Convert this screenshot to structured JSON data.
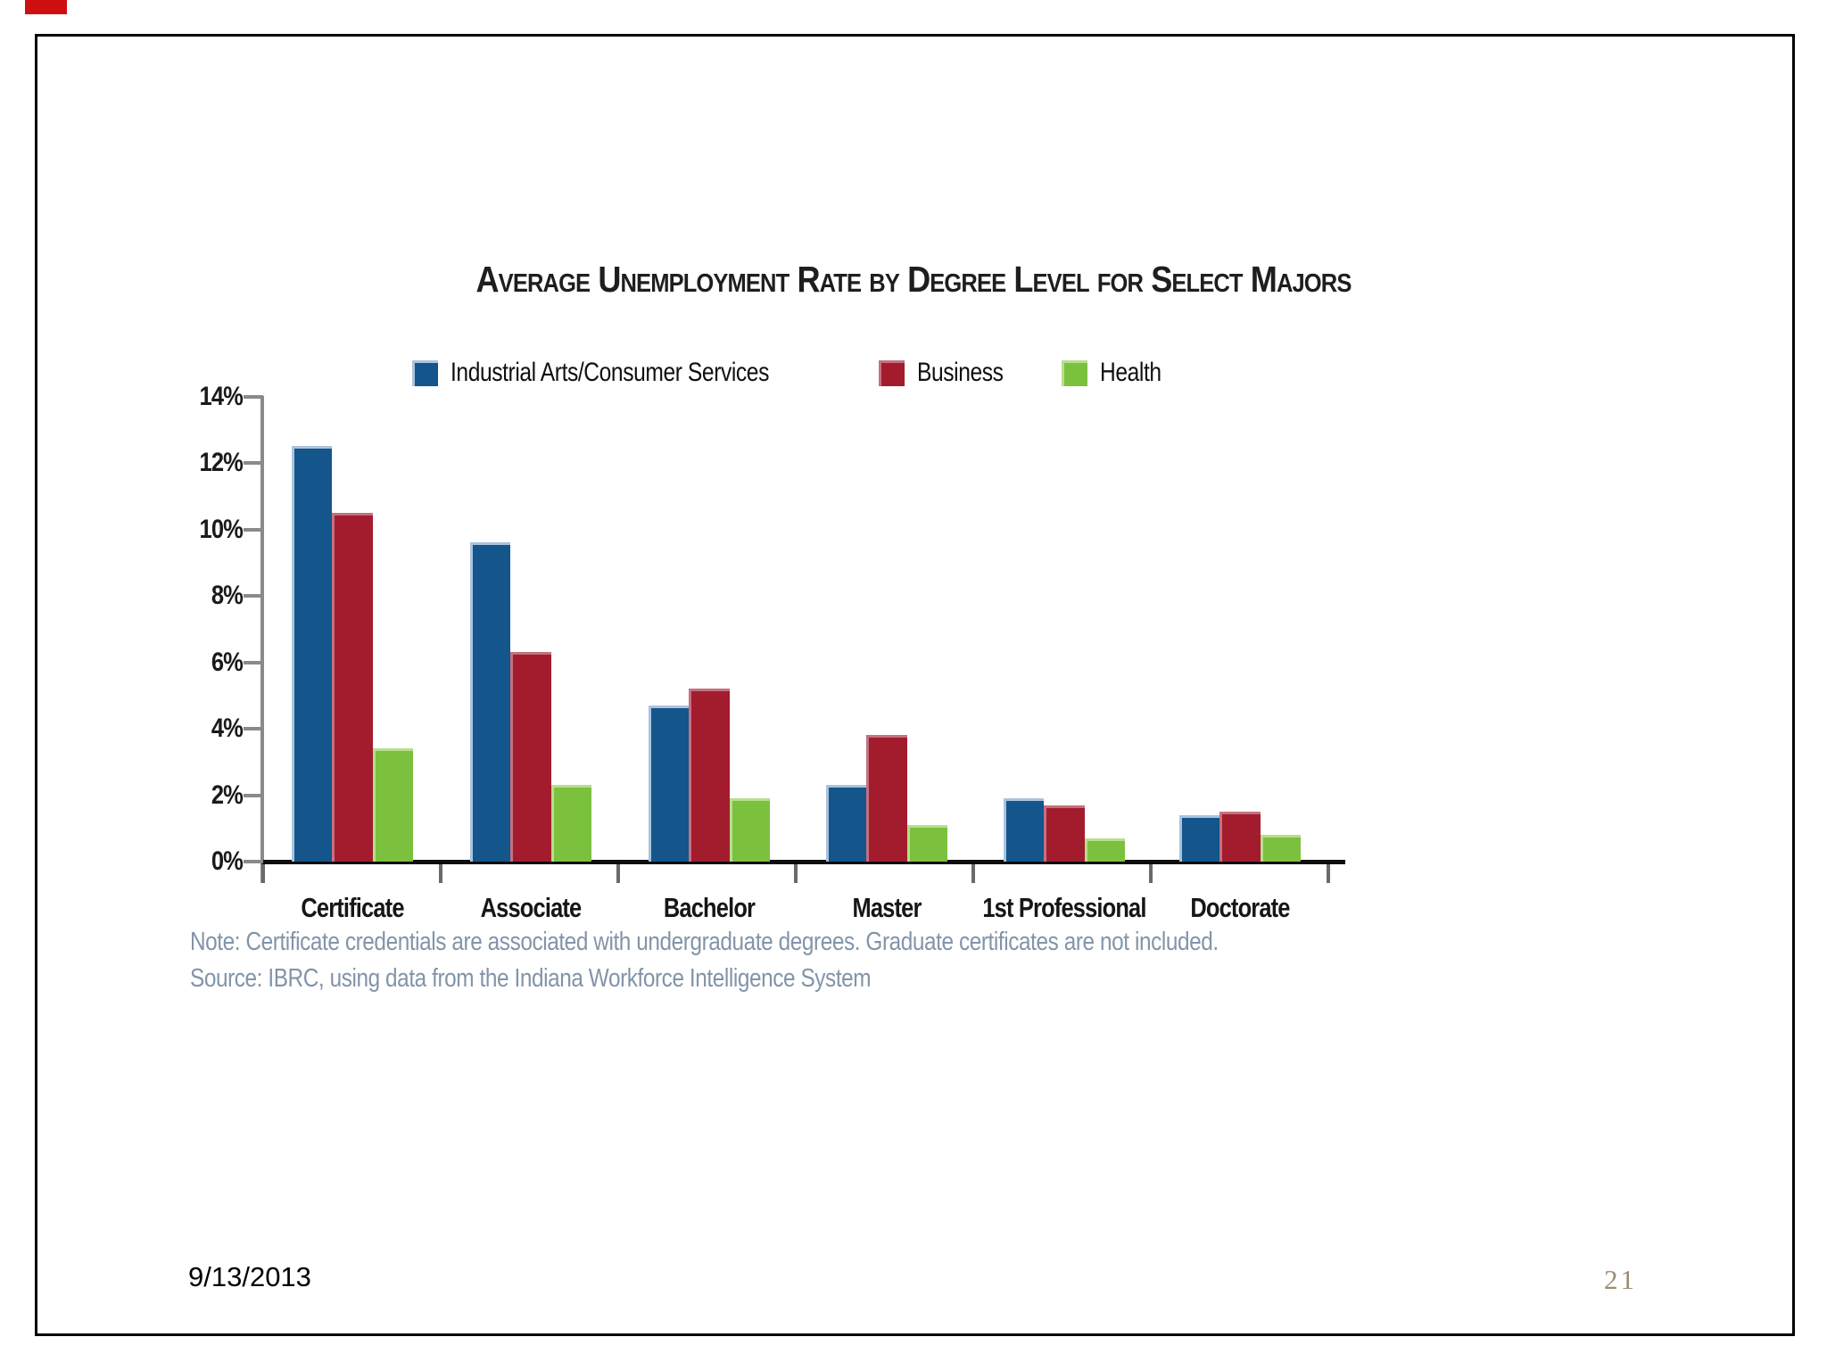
{
  "slide": {
    "footer_date": "9/13/2013",
    "page_number": "21"
  },
  "chart_data": {
    "type": "bar",
    "title": "Average Unemployment Rate by Degree Level for Select Majors",
    "categories": [
      "Certificate",
      "Associate",
      "Bachelor",
      "Master",
      "1st Professional",
      "Doctorate"
    ],
    "series": [
      {
        "name": "Industrial Arts/Consumer Services",
        "color": "#14558c",
        "edge_color": "#a9c3dd",
        "values": [
          12.5,
          9.6,
          4.7,
          2.3,
          1.9,
          1.4
        ]
      },
      {
        "name": "Business",
        "color": "#a21c2e",
        "edge_color": "#c4717e",
        "values": [
          10.5,
          6.3,
          5.2,
          3.8,
          1.7,
          1.5
        ]
      },
      {
        "name": "Health",
        "color": "#7cc13e",
        "edge_color": "#b6df8b",
        "values": [
          3.4,
          2.3,
          1.9,
          1.1,
          0.7,
          0.8
        ]
      }
    ],
    "ylabel": "",
    "ylim": [
      0,
      14
    ],
    "ytick_step": 2,
    "ytick_labels": [
      "0%",
      "2%",
      "4%",
      "6%",
      "8%",
      "10%",
      "12%",
      "14%"
    ],
    "legend_position": "top",
    "grid": false,
    "note": "Note: Certificate credentials are associated with undergraduate degrees. Graduate certificates are not included.",
    "source": "Source: IBRC, using data from the Indiana Workforce Intelligence System"
  }
}
